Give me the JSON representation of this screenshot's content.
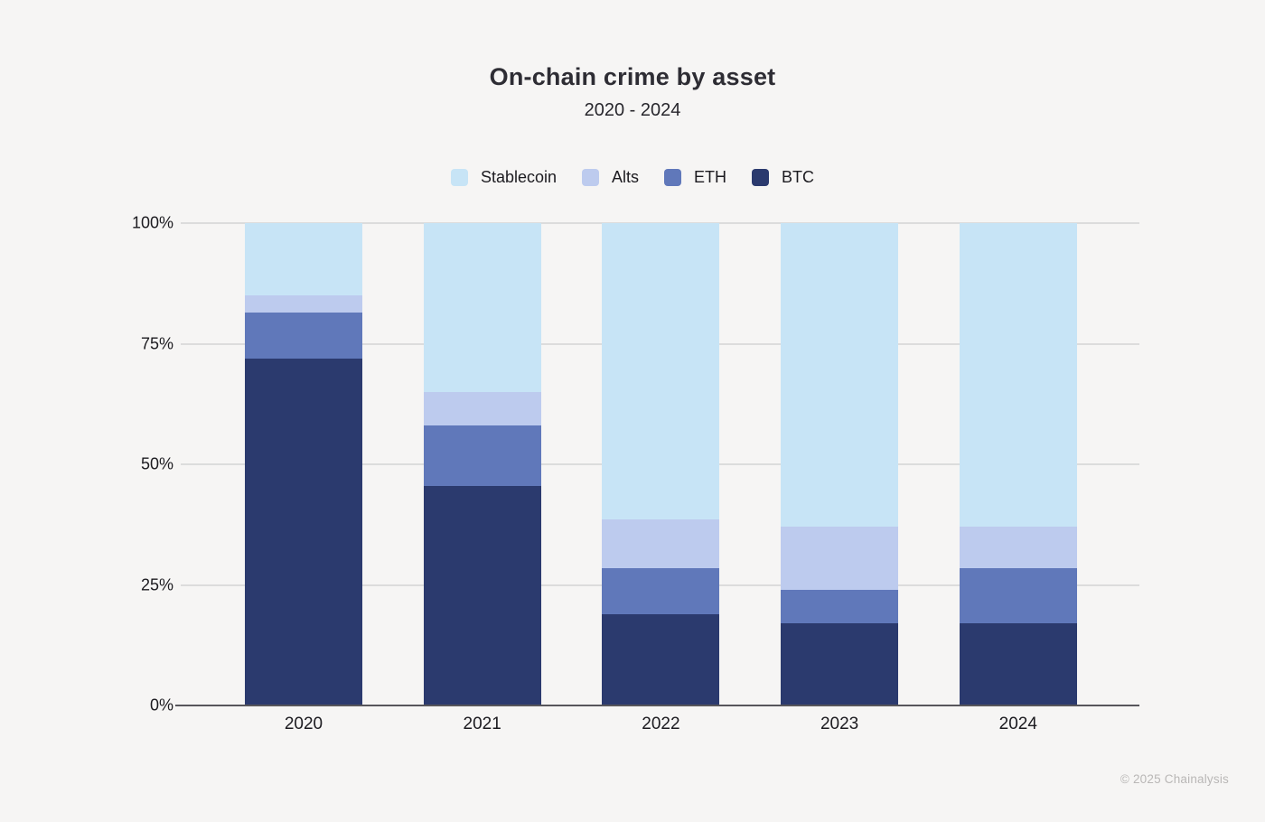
{
  "title": "On-chain crime by asset",
  "subtitle": "2020 - 2024",
  "footer_credit": "© 2025 Chainalysis",
  "colors": {
    "background": "#f6f5f4",
    "gridline": "#dcdcdc",
    "axis_line": "#57565b",
    "stablecoin": "#c7e4f6",
    "alts": "#bdcbee",
    "eth": "#6078ba",
    "btc": "#2b3a6e"
  },
  "chart_data": {
    "type": "bar",
    "stacked": true,
    "title": "On-chain crime by asset",
    "subtitle": "2020 - 2024",
    "xlabel": "",
    "ylabel": "",
    "ylim": [
      0,
      100
    ],
    "grid": true,
    "legend_position": "top",
    "categories": [
      "2020",
      "2021",
      "2022",
      "2023",
      "2024"
    ],
    "series": [
      {
        "name": "Stablecoin",
        "color": "#c7e4f6",
        "values": [
          15,
          35,
          61.5,
          63,
          63
        ]
      },
      {
        "name": "Alts",
        "color": "#bdcbee",
        "values": [
          3.5,
          7,
          10,
          13,
          8.5
        ]
      },
      {
        "name": "ETH",
        "color": "#6078ba",
        "values": [
          9.5,
          12.5,
          9.5,
          7,
          11.5
        ]
      },
      {
        "name": "BTC",
        "color": "#2b3a6e",
        "values": [
          72,
          45.5,
          19,
          17,
          17
        ]
      }
    ],
    "stack_order_bottom_to_top": [
      "BTC",
      "ETH",
      "Alts",
      "Stablecoin"
    ],
    "y_ticks": [
      {
        "label": "0%",
        "value": 0
      },
      {
        "label": "25%",
        "value": 25
      },
      {
        "label": "50%",
        "value": 50
      },
      {
        "label": "75%",
        "value": 75
      },
      {
        "label": "100%",
        "value": 100
      }
    ]
  }
}
